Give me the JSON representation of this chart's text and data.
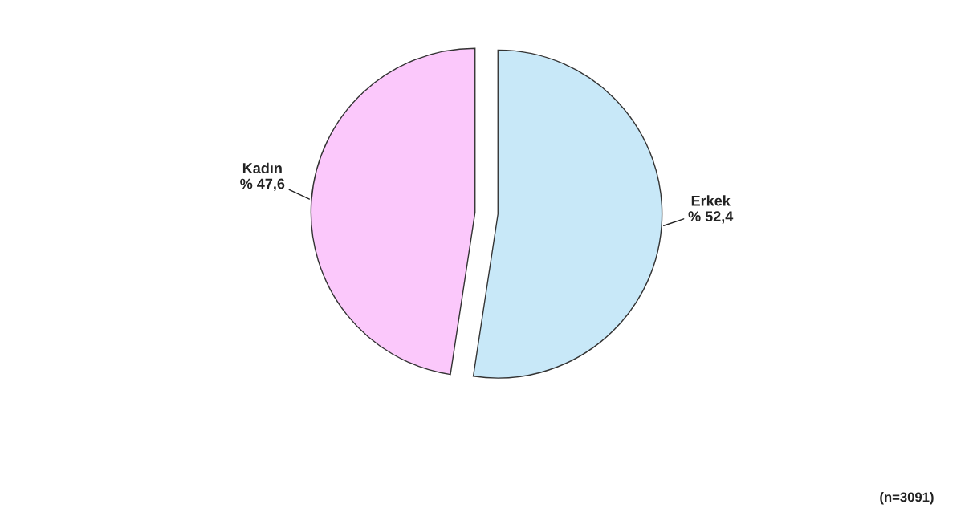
{
  "chart_data": {
    "type": "pie",
    "categories": [
      "Erkek",
      "Kadın"
    ],
    "values": [
      52.4,
      47.6
    ],
    "value_labels": [
      "% 52,4",
      "% 47,6"
    ],
    "colors": [
      "#c8e8f8",
      "#fbc8fb"
    ],
    "annotations": [
      "(n=3091)"
    ]
  }
}
